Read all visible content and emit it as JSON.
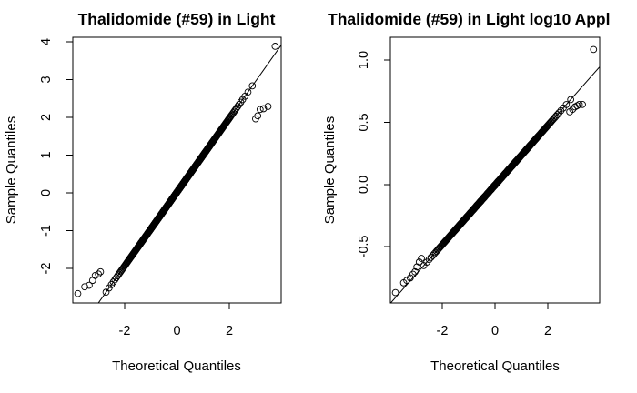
{
  "chart_data": [
    {
      "type": "scatter",
      "title": "Thalidomide (#59) in Light",
      "xlabel": "Theoretical Quantiles",
      "ylabel": "Sample Quantiles",
      "xlim": [
        -3.95,
        3.95
      ],
      "ylim": [
        -2.95,
        4.12
      ],
      "x_ticks": [
        -2,
        0,
        2
      ],
      "x_tick_labels": [
        "-2",
        "0",
        "2"
      ],
      "y_ticks": [
        -2,
        -1,
        0,
        1,
        2,
        3,
        4
      ],
      "y_tick_labels": [
        "-2",
        "-1",
        "0",
        "1",
        "2",
        "3",
        "4"
      ],
      "y_tick_rotation": "vertical",
      "grid": false,
      "legend": "none",
      "reference_line": {
        "intercept": 0.0,
        "slope": 0.99
      },
      "distribution": {
        "n": 700,
        "loc": 0.0,
        "scale": 0.99
      },
      "points": [
        {
          "x": -3.76,
          "y": -2.7
        },
        {
          "x": -3.5,
          "y": -2.52
        },
        {
          "x": -3.33,
          "y": -2.48
        },
        {
          "x": -3.2,
          "y": -2.35
        },
        {
          "x": -3.1,
          "y": -2.22
        },
        {
          "x": -2.98,
          "y": -2.18
        },
        {
          "x": -2.9,
          "y": -2.12
        },
        {
          "x": 2.98,
          "y": 1.95
        },
        {
          "x": 3.06,
          "y": 2.03
        },
        {
          "x": 3.15,
          "y": 2.2
        },
        {
          "x": 3.28,
          "y": 2.22
        },
        {
          "x": 3.45,
          "y": 2.28
        },
        {
          "x": 3.72,
          "y": 3.88
        }
      ]
    },
    {
      "type": "scatter",
      "title": "Thalidomide (#59) in Light log10 Appl",
      "xlabel": "Theoretical Quantiles",
      "ylabel": "Sample Quantiles",
      "xlim": [
        -3.95,
        3.95
      ],
      "ylim": [
        -0.965,
        1.21
      ],
      "x_ticks": [
        -2,
        0,
        2
      ],
      "x_tick_labels": [
        "-2",
        "0",
        "2"
      ],
      "y_ticks": [
        -0.5,
        0.0,
        0.5,
        1.0
      ],
      "y_tick_labels": [
        "-0.5",
        "0.0",
        "0.5",
        "1.0"
      ],
      "y_tick_rotation": "vertical",
      "grid": false,
      "legend": "none",
      "reference_line": {
        "intercept": 0.0,
        "slope": 0.245
      },
      "distribution": {
        "n": 700,
        "loc": 0.0,
        "scale": 0.245
      },
      "points": [
        {
          "x": -3.76,
          "y": -0.88
        },
        {
          "x": -3.45,
          "y": -0.8
        },
        {
          "x": -3.33,
          "y": -0.78
        },
        {
          "x": -3.2,
          "y": -0.76
        },
        {
          "x": -3.1,
          "y": -0.73
        },
        {
          "x": -3.02,
          "y": -0.71
        },
        {
          "x": -2.95,
          "y": -0.67
        },
        {
          "x": -2.86,
          "y": -0.63
        },
        {
          "x": -2.78,
          "y": -0.6
        },
        {
          "x": 2.82,
          "y": 0.6
        },
        {
          "x": 2.93,
          "y": 0.62
        },
        {
          "x": 3.02,
          "y": 0.64
        },
        {
          "x": 3.1,
          "y": 0.65
        },
        {
          "x": 3.18,
          "y": 0.66
        },
        {
          "x": 3.3,
          "y": 0.66
        },
        {
          "x": 3.72,
          "y": 1.11
        }
      ]
    }
  ]
}
